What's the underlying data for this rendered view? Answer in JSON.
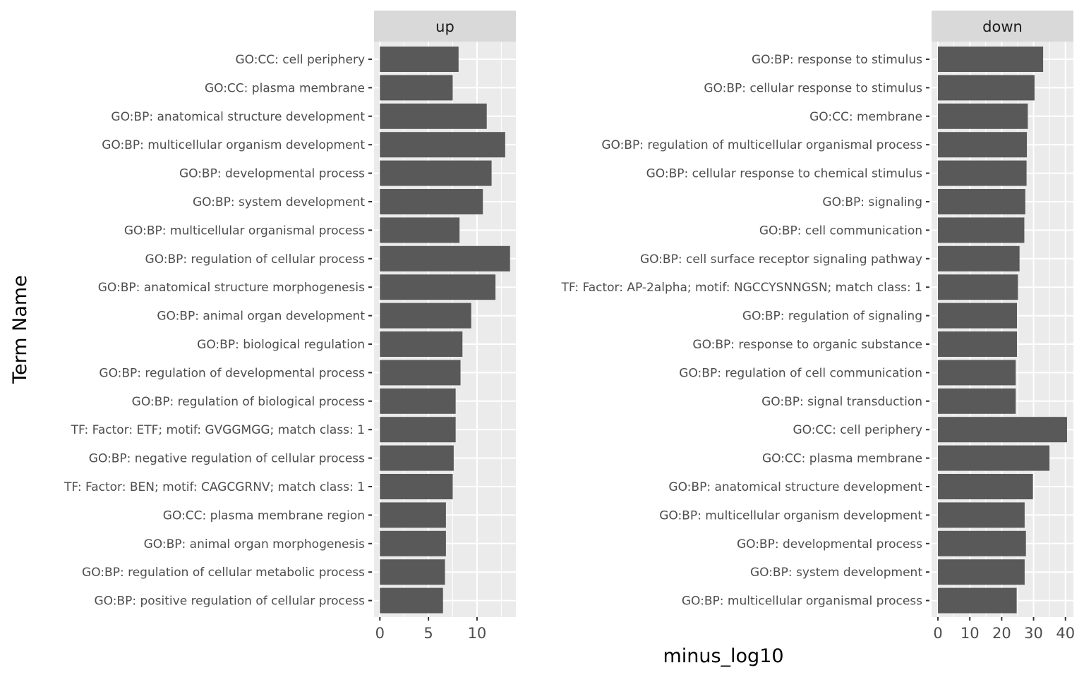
{
  "chart_data": {
    "type": "bar",
    "orientation": "horizontal",
    "xlabel": "minus_log10",
    "ylabel": "Term Name",
    "grid": true,
    "colors": {
      "bar": "#595959",
      "panel": "#ebebeb",
      "strip": "#d9d9d9",
      "grid": "#ffffff"
    },
    "facets": [
      {
        "name": "up",
        "xlim": [
          -0.6,
          14.0
        ],
        "xticks": [
          0,
          5,
          10
        ],
        "categories": [
          "GO:CC: cell periphery",
          "GO:CC: plasma membrane",
          "GO:BP: anatomical structure development",
          "GO:BP: multicellular organism development",
          "GO:BP: developmental process",
          "GO:BP: system development",
          "GO:BP: multicellular organismal process",
          "GO:BP: regulation of cellular process",
          "GO:BP: anatomical structure morphogenesis",
          "GO:BP: animal organ development",
          "GO:BP: biological regulation",
          "GO:BP: regulation of developmental process",
          "GO:BP: regulation of biological process",
          "TF: Factor: ETF; motif: GVGGMGG; match class: 1",
          "GO:BP: negative regulation of cellular process",
          "TF: Factor: BEN; motif: CAGCGRNV; match class: 1",
          "GO:CC: plasma membrane region",
          "GO:BP: animal organ morphogenesis",
          "GO:BP: regulation of cellular metabolic process",
          "GO:BP: positive regulation of cellular process"
        ],
        "values": [
          8.1,
          7.5,
          11.0,
          12.9,
          11.5,
          10.6,
          8.2,
          13.4,
          11.9,
          9.4,
          8.5,
          8.3,
          7.8,
          7.8,
          7.6,
          7.5,
          6.8,
          6.8,
          6.7,
          6.5
        ]
      },
      {
        "name": "down",
        "xlim": [
          -2,
          42.5
        ],
        "xticks": [
          0,
          10,
          20,
          30,
          40
        ],
        "categories": [
          "GO:BP: response to stimulus",
          "GO:BP: cellular response to stimulus",
          "GO:CC: membrane",
          "GO:BP: regulation of multicellular organismal process",
          "GO:BP: cellular response to chemical stimulus",
          "GO:BP: signaling",
          "GO:BP: cell communication",
          "GO:BP: cell surface receptor signaling pathway",
          "TF: Factor: AP-2alpha; motif: NGCCYSNNGSN; match class: 1",
          "GO:BP: regulation of signaling",
          "GO:BP: response to organic substance",
          "GO:BP: regulation of cell communication",
          "GO:BP: signal transduction",
          "GO:CC: cell periphery",
          "GO:CC: plasma membrane",
          "GO:BP: anatomical structure development",
          "GO:BP: multicellular organism development",
          "GO:BP: developmental process",
          "GO:BP: system development",
          "GO:BP: multicellular organismal process"
        ],
        "values": [
          33.0,
          30.3,
          28.2,
          27.9,
          27.8,
          27.4,
          27.1,
          25.6,
          25.1,
          24.8,
          24.8,
          24.4,
          24.4,
          40.5,
          35.0,
          29.8,
          27.2,
          27.6,
          27.2,
          24.7
        ]
      }
    ]
  }
}
